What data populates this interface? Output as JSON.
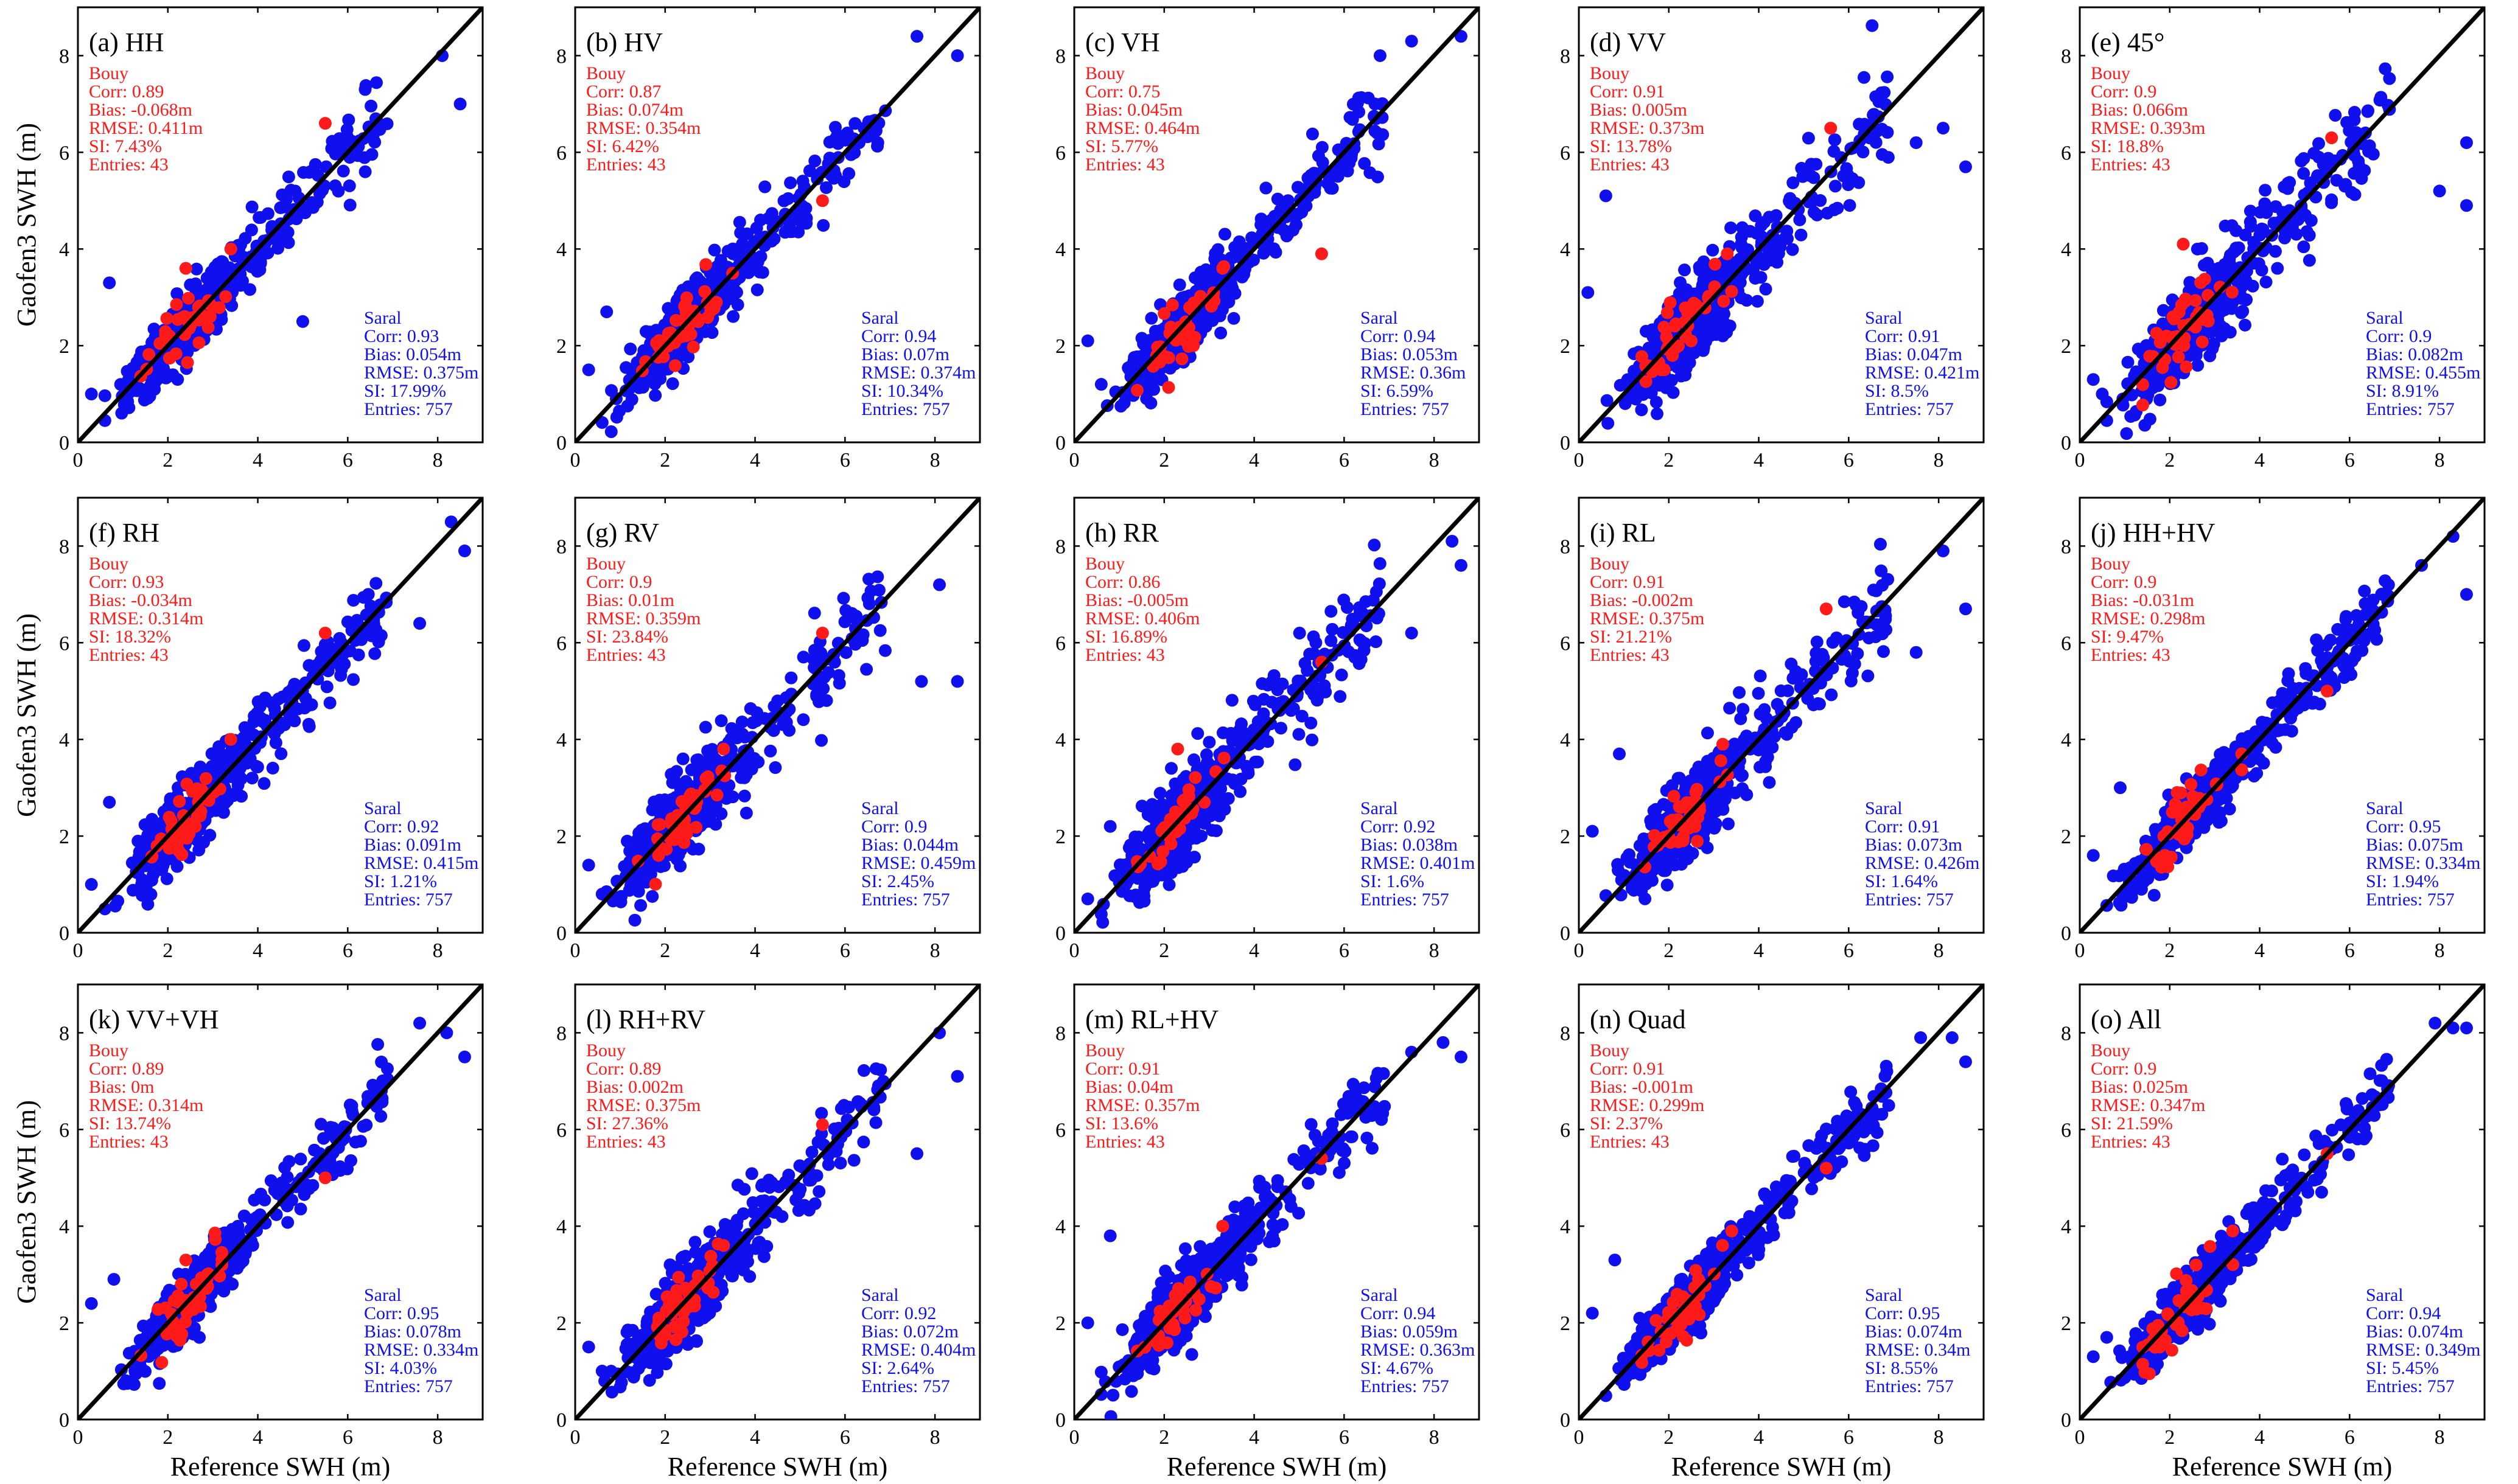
{
  "figure": {
    "xlabel": "Reference SWH (m)",
    "ylabel": "Gaofen3 SWH (m)",
    "colors": {
      "buoy": "#ff1a1a",
      "saral": "#1010ee",
      "line": "#000000",
      "axis": "#000000"
    }
  },
  "chart_data": [
    {
      "type": "scatter",
      "title": "(a) HH",
      "xlim": [
        0,
        9
      ],
      "ylim": [
        0,
        9
      ],
      "xticks": [
        0,
        2,
        4,
        6,
        8
      ],
      "yticks": [
        0,
        2,
        4,
        6,
        8
      ],
      "buoy": {
        "label": "Bouy",
        "corr": "Corr: 0.89",
        "bias": "Bias: -0.068m",
        "rmse": "RMSE: 0.411m",
        "si": "SI: 7.43%",
        "entries": "Entries: 43"
      },
      "saral": {
        "label": "Saral",
        "corr": "Corr: 0.93",
        "bias": "Bias: 0.054m",
        "rmse": "RMSE: 0.375m",
        "si": "SI: 17.99%",
        "entries": "Entries: 757"
      },
      "seed": 11,
      "spread": 0.3,
      "outliers": [
        [
          0.3,
          1.0
        ],
        [
          0.7,
          3.3
        ],
        [
          8.5,
          7.0
        ],
        [
          8.1,
          8.0
        ],
        [
          5.0,
          2.5
        ]
      ],
      "buoy_outliers": [
        [
          5.5,
          6.6
        ],
        [
          2.4,
          3.6
        ],
        [
          3.4,
          4.0
        ]
      ]
    },
    {
      "type": "scatter",
      "title": "(b) HV",
      "xlim": [
        0,
        9
      ],
      "ylim": [
        0,
        9
      ],
      "xticks": [
        0,
        2,
        4,
        6,
        8
      ],
      "yticks": [
        0,
        2,
        4,
        6,
        8
      ],
      "buoy": {
        "label": "Bouy",
        "corr": "Corr: 0.87",
        "bias": "Bias: 0.074m",
        "rmse": "RMSE: 0.354m",
        "si": "SI: 6.42%",
        "entries": "Entries: 43"
      },
      "saral": {
        "label": "Saral",
        "corr": "Corr: 0.94",
        "bias": "Bias: 0.07m",
        "rmse": "RMSE: 0.374m",
        "si": "SI: 10.34%",
        "entries": "Entries: 757"
      },
      "seed": 23,
      "spread": 0.3,
      "outliers": [
        [
          0.7,
          2.7
        ],
        [
          7.6,
          8.4
        ],
        [
          8.5,
          8.0
        ],
        [
          0.3,
          1.5
        ]
      ],
      "buoy_outliers": [
        [
          5.5,
          5.0
        ],
        [
          3.5,
          3.5
        ]
      ]
    },
    {
      "type": "scatter",
      "title": "(c) VH",
      "xlim": [
        0,
        9
      ],
      "ylim": [
        0,
        9
      ],
      "xticks": [
        0,
        2,
        4,
        6,
        8
      ],
      "yticks": [
        0,
        2,
        4,
        6,
        8
      ],
      "buoy": {
        "label": "Bouy",
        "corr": "Corr: 0.75",
        "bias": "Bias: 0.045m",
        "rmse": "RMSE: 0.464m",
        "si": "SI: 5.77%",
        "entries": "Entries: 43"
      },
      "saral": {
        "label": "Saral",
        "corr": "Corr: 0.94",
        "bias": "Bias: 0.053m",
        "rmse": "RMSE: 0.36m",
        "si": "SI: 6.59%",
        "entries": "Entries: 757"
      },
      "seed": 37,
      "spread": 0.32,
      "outliers": [
        [
          0.3,
          2.1
        ],
        [
          7.5,
          8.3
        ],
        [
          8.6,
          8.4
        ],
        [
          6.8,
          8.0
        ],
        [
          0.6,
          1.2
        ]
      ],
      "buoy_outliers": [
        [
          5.5,
          3.9
        ],
        [
          3.3,
          3.6
        ]
      ]
    },
    {
      "type": "scatter",
      "title": "(d) VV",
      "xlim": [
        0,
        9
      ],
      "ylim": [
        0,
        9
      ],
      "xticks": [
        0,
        2,
        4,
        6,
        8
      ],
      "yticks": [
        0,
        2,
        4,
        6,
        8
      ],
      "buoy": {
        "label": "Bouy",
        "corr": "Corr: 0.91",
        "bias": "Bias: 0.005m",
        "rmse": "RMSE: 0.373m",
        "si": "SI: 13.78%",
        "entries": "Entries: 43"
      },
      "saral": {
        "label": "Saral",
        "corr": "Corr: 0.91",
        "bias": "Bias: 0.047m",
        "rmse": "RMSE: 0.421m",
        "si": "SI: 8.5%",
        "entries": "Entries: 757"
      },
      "seed": 41,
      "spread": 0.42,
      "outliers": [
        [
          0.6,
          5.1
        ],
        [
          0.2,
          3.1
        ],
        [
          8.6,
          5.7
        ],
        [
          8.1,
          6.5
        ],
        [
          7.5,
          6.2
        ]
      ],
      "buoy_outliers": [
        [
          5.6,
          6.5
        ],
        [
          3.3,
          3.9
        ]
      ]
    },
    {
      "type": "scatter",
      "title": "(e) 45°",
      "xlim": [
        0,
        9
      ],
      "ylim": [
        0,
        9
      ],
      "xticks": [
        0,
        2,
        4,
        6,
        8
      ],
      "yticks": [
        0,
        2,
        4,
        6,
        8
      ],
      "buoy": {
        "label": "Bouy",
        "corr": "Corr: 0.9",
        "bias": "Bias: 0.066m",
        "rmse": "RMSE: 0.393m",
        "si": "SI: 18.8%",
        "entries": "Entries: 43"
      },
      "saral": {
        "label": "Saral",
        "corr": "Corr: 0.9",
        "bias": "Bias: 0.082m",
        "rmse": "RMSE: 0.455m",
        "si": "SI: 8.91%",
        "entries": "Entries: 757"
      },
      "seed": 53,
      "spread": 0.42,
      "outliers": [
        [
          0.3,
          1.3
        ],
        [
          8.6,
          4.9
        ],
        [
          8.0,
          5.2
        ],
        [
          8.6,
          6.2
        ],
        [
          0.5,
          1.0
        ]
      ],
      "buoy_outliers": [
        [
          5.6,
          6.3
        ],
        [
          2.3,
          4.1
        ]
      ]
    },
    {
      "type": "scatter",
      "title": "(f) RH",
      "xlim": [
        0,
        9
      ],
      "ylim": [
        0,
        9
      ],
      "xticks": [
        0,
        2,
        4,
        6,
        8
      ],
      "yticks": [
        0,
        2,
        4,
        6,
        8
      ],
      "buoy": {
        "label": "Bouy",
        "corr": "Corr: 0.93",
        "bias": "Bias: -0.034m",
        "rmse": "RMSE: 0.314m",
        "si": "SI: 18.32%",
        "entries": "Entries: 43"
      },
      "saral": {
        "label": "Saral",
        "corr": "Corr: 0.92",
        "bias": "Bias: 0.091m",
        "rmse": "RMSE: 0.415m",
        "si": "SI: 1.21%",
        "entries": "Entries: 757"
      },
      "seed": 61,
      "spread": 0.36,
      "outliers": [
        [
          0.3,
          1.0
        ],
        [
          0.7,
          2.7
        ],
        [
          8.3,
          8.5
        ],
        [
          8.6,
          7.9
        ],
        [
          7.6,
          6.4
        ]
      ],
      "buoy_outliers": [
        [
          5.5,
          6.2
        ],
        [
          3.4,
          4.0
        ]
      ]
    },
    {
      "type": "scatter",
      "title": "(g) RV",
      "xlim": [
        0,
        9
      ],
      "ylim": [
        0,
        9
      ],
      "xticks": [
        0,
        2,
        4,
        6,
        8
      ],
      "yticks": [
        0,
        2,
        4,
        6,
        8
      ],
      "buoy": {
        "label": "Bouy",
        "corr": "Corr: 0.9",
        "bias": "Bias: 0.01m",
        "rmse": "RMSE: 0.359m",
        "si": "SI: 23.84%",
        "entries": "Entries: 43"
      },
      "saral": {
        "label": "Saral",
        "corr": "Corr: 0.9",
        "bias": "Bias: 0.044m",
        "rmse": "RMSE: 0.459m",
        "si": "SI: 2.45%",
        "entries": "Entries: 757"
      },
      "seed": 71,
      "spread": 0.4,
      "outliers": [
        [
          0.3,
          1.4
        ],
        [
          8.5,
          5.2
        ],
        [
          7.7,
          5.2
        ],
        [
          8.1,
          7.2
        ],
        [
          0.6,
          0.8
        ]
      ],
      "buoy_outliers": [
        [
          5.5,
          6.2
        ],
        [
          3.3,
          3.8
        ]
      ]
    },
    {
      "type": "scatter",
      "title": "(h) RR",
      "xlim": [
        0,
        9
      ],
      "ylim": [
        0,
        9
      ],
      "xticks": [
        0,
        2,
        4,
        6,
        8
      ],
      "yticks": [
        0,
        2,
        4,
        6,
        8
      ],
      "buoy": {
        "label": "Bouy",
        "corr": "Corr: 0.86",
        "bias": "Bias: -0.005m",
        "rmse": "RMSE: 0.406m",
        "si": "SI: 16.89%",
        "entries": "Entries: 43"
      },
      "saral": {
        "label": "Saral",
        "corr": "Corr: 0.92",
        "bias": "Bias: 0.038m",
        "rmse": "RMSE: 0.401m",
        "si": "SI: 1.6%",
        "entries": "Entries: 757"
      },
      "seed": 83,
      "spread": 0.42,
      "outliers": [
        [
          0.3,
          0.7
        ],
        [
          8.4,
          8.1
        ],
        [
          8.6,
          7.6
        ],
        [
          7.5,
          6.2
        ],
        [
          0.8,
          2.2
        ]
      ],
      "buoy_outliers": [
        [
          5.5,
          5.6
        ],
        [
          2.3,
          3.8
        ]
      ]
    },
    {
      "type": "scatter",
      "title": "(i) RL",
      "xlim": [
        0,
        9
      ],
      "ylim": [
        0,
        9
      ],
      "xticks": [
        0,
        2,
        4,
        6,
        8
      ],
      "yticks": [
        0,
        2,
        4,
        6,
        8
      ],
      "buoy": {
        "label": "Bouy",
        "corr": "Corr: 0.91",
        "bias": "Bias: -0.002m",
        "rmse": "RMSE: 0.375m",
        "si": "SI: 21.21%",
        "entries": "Entries: 43"
      },
      "saral": {
        "label": "Saral",
        "corr": "Corr: 0.91",
        "bias": "Bias: 0.073m",
        "rmse": "RMSE: 0.426m",
        "si": "SI: 1.64%",
        "entries": "Entries: 757"
      },
      "seed": 97,
      "spread": 0.42,
      "outliers": [
        [
          0.9,
          3.7
        ],
        [
          0.3,
          2.1
        ],
        [
          8.6,
          6.7
        ],
        [
          8.1,
          7.9
        ],
        [
          7.5,
          5.8
        ]
      ],
      "buoy_outliers": [
        [
          5.5,
          6.7
        ],
        [
          3.2,
          3.9
        ]
      ]
    },
    {
      "type": "scatter",
      "title": "(j) HH+HV",
      "xlim": [
        0,
        9
      ],
      "ylim": [
        0,
        9
      ],
      "xticks": [
        0,
        2,
        4,
        6,
        8
      ],
      "yticks": [
        0,
        2,
        4,
        6,
        8
      ],
      "buoy": {
        "label": "Bouy",
        "corr": "Corr: 0.9",
        "bias": "Bias: -0.031m",
        "rmse": "RMSE: 0.298m",
        "si": "SI: 9.47%",
        "entries": "Entries: 43"
      },
      "saral": {
        "label": "Saral",
        "corr": "Corr: 0.95",
        "bias": "Bias: 0.075m",
        "rmse": "RMSE: 0.334m",
        "si": "SI: 1.94%",
        "entries": "Entries: 757"
      },
      "seed": 101,
      "spread": 0.28,
      "outliers": [
        [
          0.9,
          3.0
        ],
        [
          0.3,
          1.6
        ],
        [
          8.3,
          8.2
        ],
        [
          8.6,
          7.0
        ],
        [
          7.6,
          7.6
        ]
      ],
      "buoy_outliers": [
        [
          5.5,
          5.0
        ],
        [
          3.6,
          3.7
        ]
      ]
    },
    {
      "type": "scatter",
      "title": "(k) VV+VH",
      "xlim": [
        0,
        9
      ],
      "ylim": [
        0,
        9
      ],
      "xticks": [
        0,
        2,
        4,
        6,
        8
      ],
      "yticks": [
        0,
        2,
        4,
        6,
        8
      ],
      "buoy": {
        "label": "Bouy",
        "corr": "Corr: 0.89",
        "bias": "Bias: 0m",
        "rmse": "RMSE: 0.314m",
        "si": "SI: 13.74%",
        "entries": "Entries: 43"
      },
      "saral": {
        "label": "Saral",
        "corr": "Corr: 0.95",
        "bias": "Bias: 0.078m",
        "rmse": "RMSE: 0.334m",
        "si": "SI: 4.03%",
        "entries": "Entries: 757"
      },
      "seed": 113,
      "spread": 0.28,
      "outliers": [
        [
          0.3,
          2.4
        ],
        [
          0.8,
          2.9
        ],
        [
          7.6,
          8.2
        ],
        [
          8.6,
          7.5
        ],
        [
          8.2,
          8.0
        ]
      ],
      "buoy_outliers": [
        [
          5.5,
          5.0
        ],
        [
          2.4,
          3.3
        ]
      ]
    },
    {
      "type": "scatter",
      "title": "(l) RH+RV",
      "xlim": [
        0,
        9
      ],
      "ylim": [
        0,
        9
      ],
      "xticks": [
        0,
        2,
        4,
        6,
        8
      ],
      "yticks": [
        0,
        2,
        4,
        6,
        8
      ],
      "buoy": {
        "label": "Bouy",
        "corr": "Corr: 0.89",
        "bias": "Bias: 0.002m",
        "rmse": "RMSE: 0.375m",
        "si": "SI: 27.36%",
        "entries": "Entries: 43"
      },
      "saral": {
        "label": "Saral",
        "corr": "Corr: 0.92",
        "bias": "Bias: 0.072m",
        "rmse": "RMSE: 0.404m",
        "si": "SI: 2.64%",
        "entries": "Entries: 757"
      },
      "seed": 127,
      "spread": 0.38,
      "outliers": [
        [
          0.3,
          1.5
        ],
        [
          8.5,
          7.1
        ],
        [
          8.1,
          8.0
        ],
        [
          7.6,
          5.5
        ],
        [
          0.8,
          1.0
        ]
      ],
      "buoy_outliers": [
        [
          5.5,
          6.1
        ],
        [
          3.3,
          3.6
        ]
      ]
    },
    {
      "type": "scatter",
      "title": "(m) RL+HV",
      "xlim": [
        0,
        9
      ],
      "ylim": [
        0,
        9
      ],
      "xticks": [
        0,
        2,
        4,
        6,
        8
      ],
      "yticks": [
        0,
        2,
        4,
        6,
        8
      ],
      "buoy": {
        "label": "Bouy",
        "corr": "Corr: 0.91",
        "bias": "Bias: 0.04m",
        "rmse": "RMSE: 0.357m",
        "si": "SI: 13.6%",
        "entries": "Entries: 43"
      },
      "saral": {
        "label": "Saral",
        "corr": "Corr: 0.94",
        "bias": "Bias: 0.059m",
        "rmse": "RMSE: 0.363m",
        "si": "SI: 4.67%",
        "entries": "Entries: 757"
      },
      "seed": 131,
      "spread": 0.36,
      "outliers": [
        [
          0.8,
          3.8
        ],
        [
          0.3,
          2.0
        ],
        [
          8.2,
          7.8
        ],
        [
          8.6,
          7.5
        ],
        [
          7.5,
          7.6
        ]
      ],
      "buoy_outliers": [
        [
          5.5,
          5.4
        ],
        [
          3.3,
          4.0
        ]
      ]
    },
    {
      "type": "scatter",
      "title": "(n) Quad",
      "xlim": [
        0,
        9
      ],
      "ylim": [
        0,
        9
      ],
      "xticks": [
        0,
        2,
        4,
        6,
        8
      ],
      "yticks": [
        0,
        2,
        4,
        6,
        8
      ],
      "buoy": {
        "label": "Bouy",
        "corr": "Corr: 0.91",
        "bias": "Bias: -0.001m",
        "rmse": "RMSE: 0.299m",
        "si": "SI: 2.37%",
        "entries": "Entries: 43"
      },
      "saral": {
        "label": "Saral",
        "corr": "Corr: 0.95",
        "bias": "Bias: 0.074m",
        "rmse": "RMSE: 0.34m",
        "si": "SI: 8.55%",
        "entries": "Entries: 757"
      },
      "seed": 139,
      "spread": 0.28,
      "outliers": [
        [
          0.8,
          3.3
        ],
        [
          0.3,
          2.2
        ],
        [
          7.6,
          7.9
        ],
        [
          8.6,
          7.4
        ],
        [
          8.3,
          7.9
        ]
      ],
      "buoy_outliers": [
        [
          5.5,
          5.2
        ],
        [
          3.4,
          3.9
        ]
      ]
    },
    {
      "type": "scatter",
      "title": "(o) All",
      "xlim": [
        0,
        9
      ],
      "ylim": [
        0,
        9
      ],
      "xticks": [
        0,
        2,
        4,
        6,
        8
      ],
      "yticks": [
        0,
        2,
        4,
        6,
        8
      ],
      "buoy": {
        "label": "Bouy",
        "corr": "Corr: 0.9",
        "bias": "Bias: 0.025m",
        "rmse": "RMSE: 0.347m",
        "si": "SI: 21.59%",
        "entries": "Entries: 43"
      },
      "saral": {
        "label": "Saral",
        "corr": "Corr: 0.94",
        "bias": "Bias: 0.074m",
        "rmse": "RMSE: 0.349m",
        "si": "SI: 5.45%",
        "entries": "Entries: 757"
      },
      "seed": 149,
      "spread": 0.28,
      "outliers": [
        [
          0.3,
          1.3
        ],
        [
          8.3,
          8.1
        ],
        [
          8.6,
          8.1
        ],
        [
          7.9,
          8.2
        ],
        [
          0.6,
          1.7
        ]
      ],
      "buoy_outliers": [
        [
          5.5,
          5.5
        ],
        [
          3.4,
          3.9
        ]
      ]
    }
  ]
}
